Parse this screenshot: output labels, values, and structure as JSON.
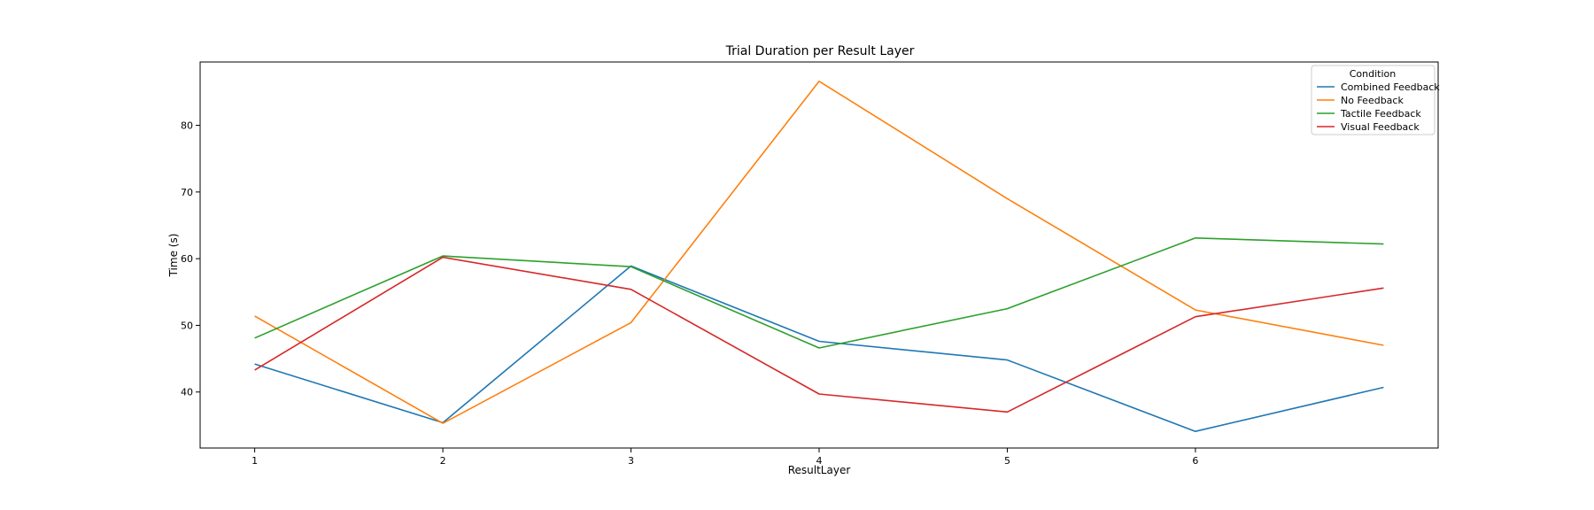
{
  "chart_data": {
    "type": "line",
    "title": "Trial Duration per Result Layer",
    "xlabel": "ResultLayer",
    "ylabel": "Time (s)",
    "x": [
      1,
      2,
      3,
      4,
      5,
      6,
      7
    ],
    "x_ticks": [
      "1",
      "2",
      "3",
      "4",
      "5",
      "6"
    ],
    "y_ticks": [
      "40",
      "50",
      "60",
      "70",
      "80"
    ],
    "xlim": [
      0.71,
      7.29
    ],
    "ylim": [
      31.6,
      89.5
    ],
    "grid": false,
    "legend": {
      "title": "Condition",
      "placement": "top-right"
    },
    "series": [
      {
        "name": "Combined Feedback",
        "color": "#1f77b4",
        "values": [
          44.2,
          35.4,
          58.9,
          47.6,
          44.8,
          34.1,
          40.7
        ]
      },
      {
        "name": "No Feedback",
        "color": "#ff7f0e",
        "values": [
          51.4,
          35.3,
          50.4,
          86.6,
          69.0,
          52.3,
          47.0
        ]
      },
      {
        "name": "Tactile Feedback",
        "color": "#2ca02c",
        "values": [
          48.1,
          60.4,
          58.8,
          46.6,
          52.5,
          63.1,
          62.2
        ]
      },
      {
        "name": "Visual Feedback",
        "color": "#d62728",
        "values": [
          43.3,
          60.2,
          55.4,
          39.7,
          37.0,
          51.3,
          55.6
        ]
      }
    ]
  }
}
